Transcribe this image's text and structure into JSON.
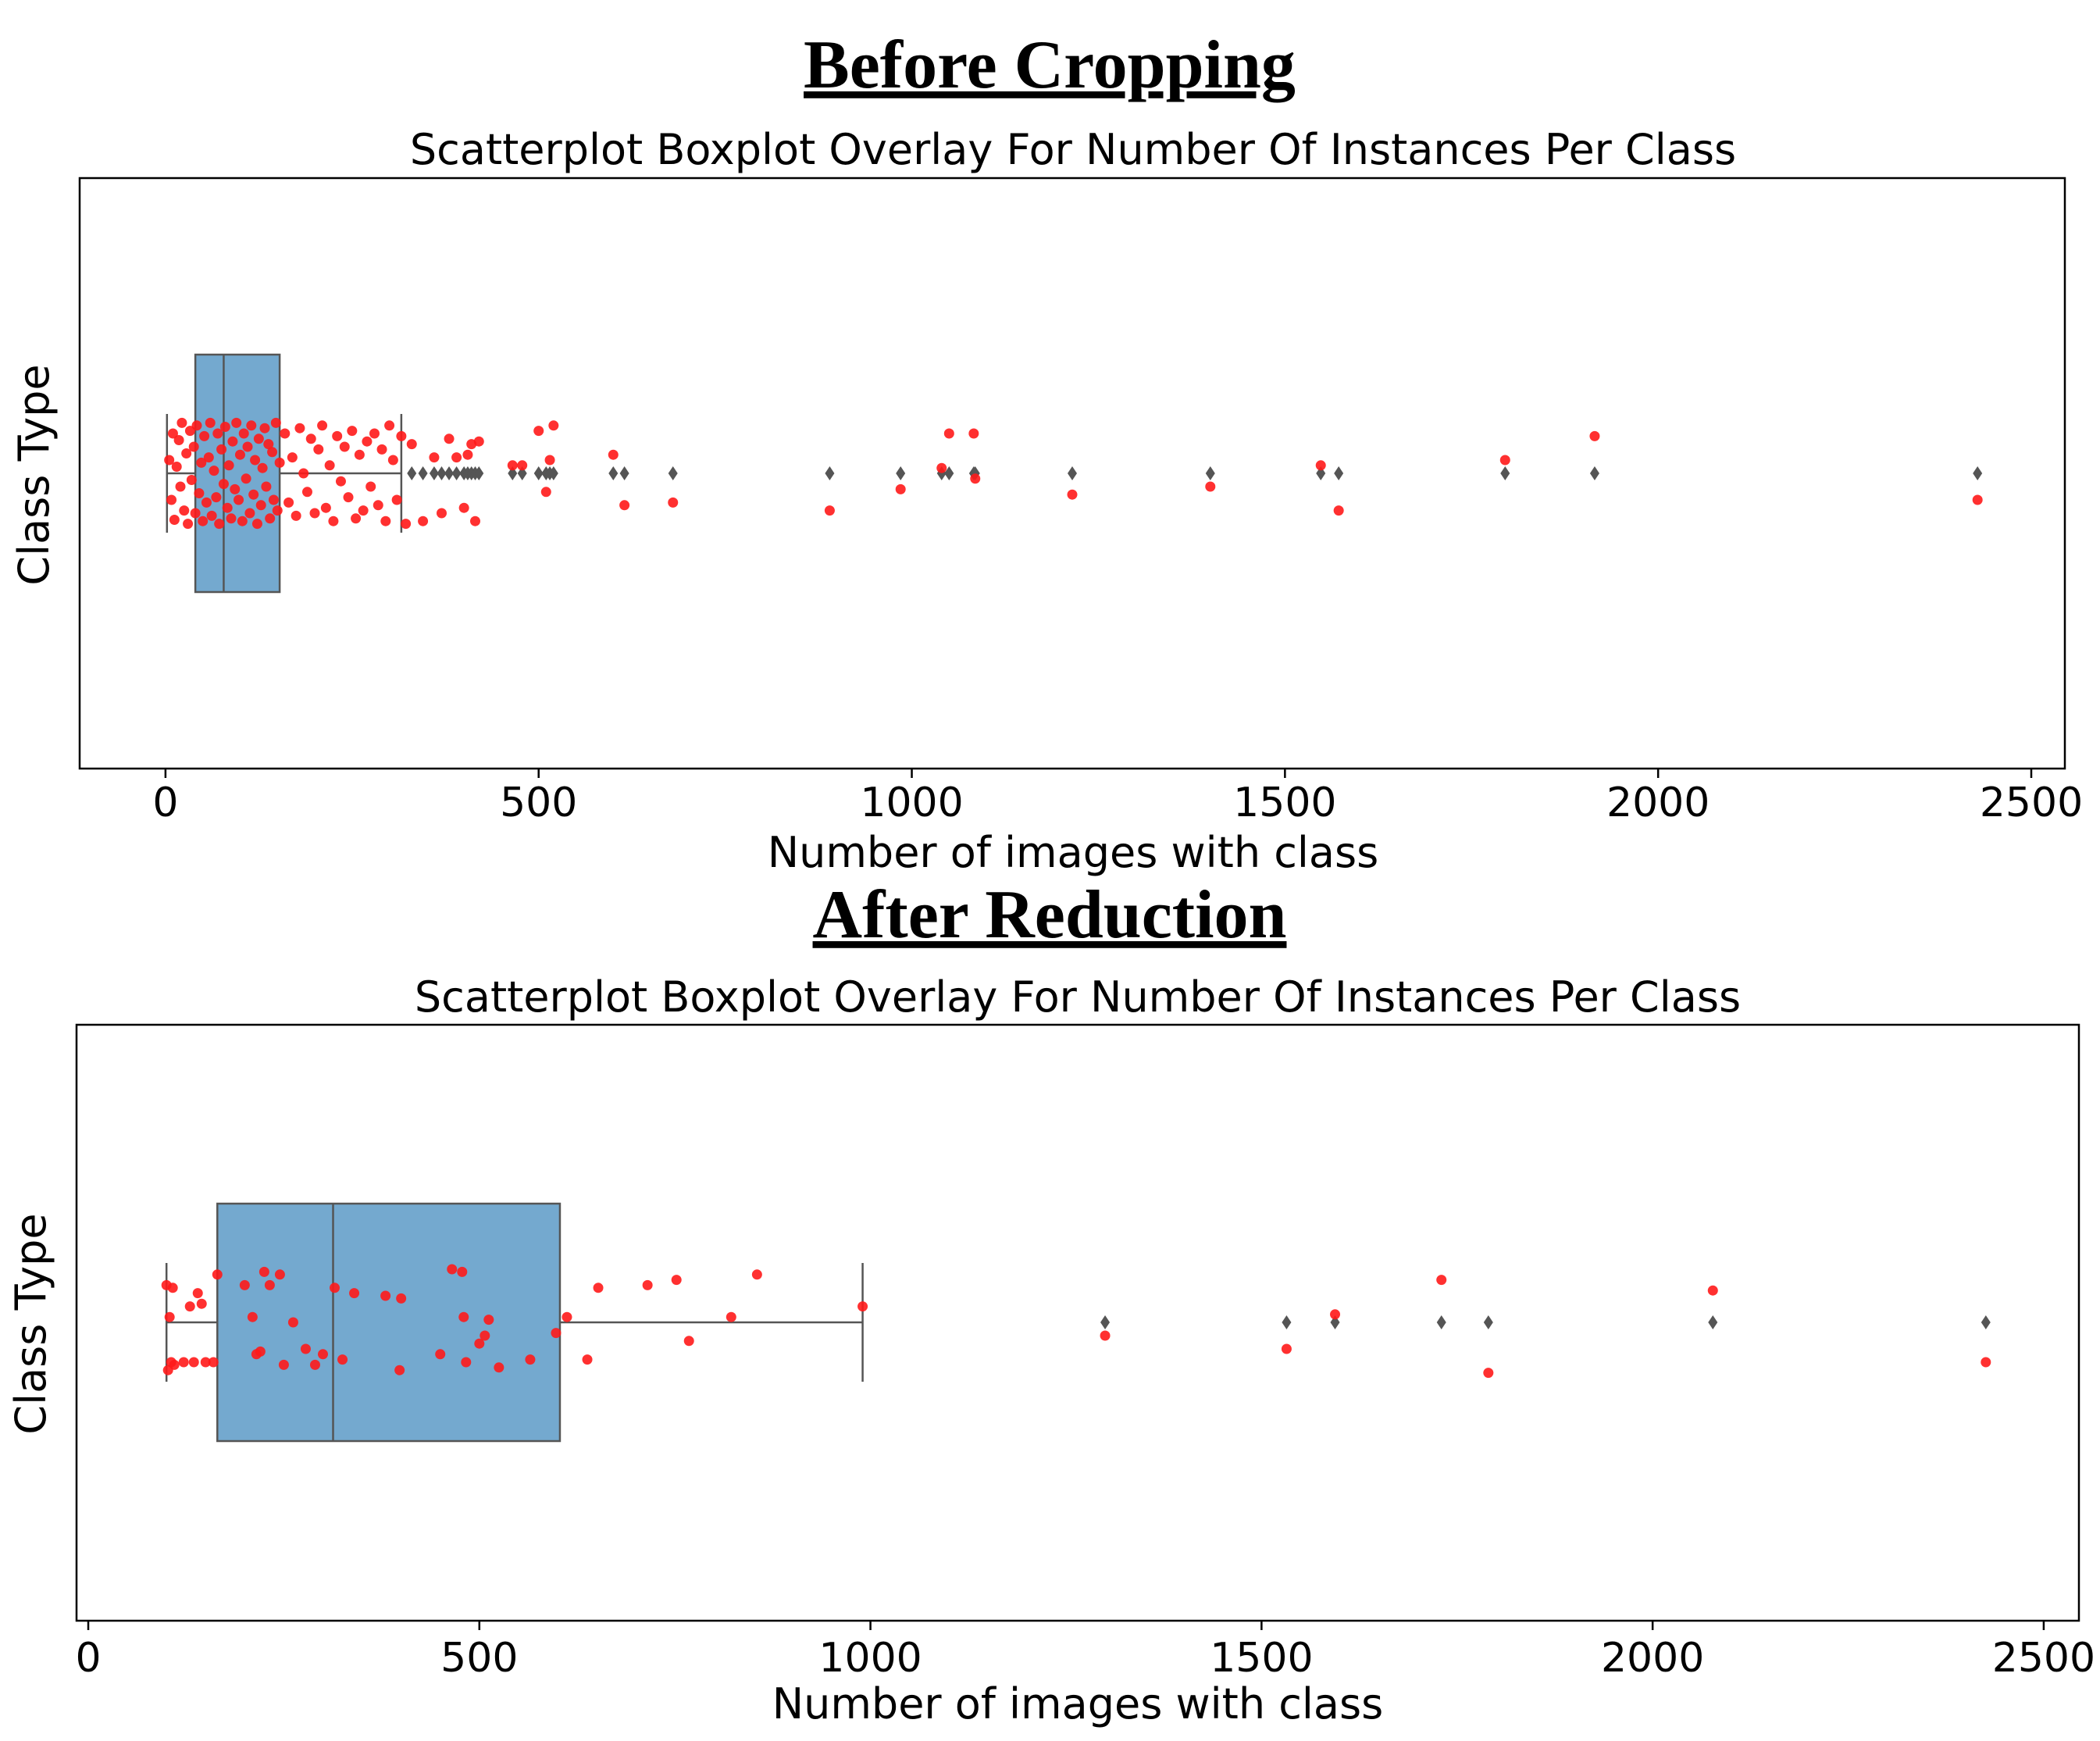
{
  "colors": {
    "box_fill": "#74a9cf",
    "box_edge": "#555555",
    "scatter": "#ff1a1a",
    "outlier": "#555555",
    "frame": "#000000"
  },
  "chart_data": [
    {
      "type": "scatter_box_overlay",
      "heading": "Before Cropping",
      "title": "Scatterplot Boxplot Overlay For Number Of Instances Per Class",
      "xlabel": "Number of images with class",
      "ylabel": "Class Type",
      "xlim": [
        -115,
        2545
      ],
      "xticks": [
        0,
        500,
        1000,
        1500,
        2000,
        2500
      ],
      "xtick_labels": [
        "0",
        "500",
        "1000",
        "1500",
        "2000",
        "2500"
      ],
      "box": {
        "whisker_low": 2,
        "q1": 40,
        "median": 78,
        "q3": 153,
        "whisker_high": 316
      },
      "outliers": [
        330,
        345,
        360,
        370,
        380,
        390,
        400,
        405,
        410,
        415,
        420,
        465,
        478,
        500,
        510,
        515,
        520,
        600,
        615,
        680,
        890,
        985,
        1040,
        1050,
        1083,
        1085,
        1215,
        1400,
        1548,
        1572,
        1795,
        1915,
        2428
      ],
      "points": [
        {
          "x": 5,
          "y": 0.1
        },
        {
          "x": 8,
          "y": -0.2
        },
        {
          "x": 10,
          "y": 0.3
        },
        {
          "x": 12,
          "y": -0.35
        },
        {
          "x": 15,
          "y": 0.05
        },
        {
          "x": 18,
          "y": 0.25
        },
        {
          "x": 20,
          "y": -0.1
        },
        {
          "x": 22,
          "y": 0.38
        },
        {
          "x": 25,
          "y": -0.28
        },
        {
          "x": 28,
          "y": 0.15
        },
        {
          "x": 30,
          "y": -0.38
        },
        {
          "x": 33,
          "y": 0.32
        },
        {
          "x": 35,
          "y": -0.05
        },
        {
          "x": 38,
          "y": 0.2
        },
        {
          "x": 40,
          "y": -0.3
        },
        {
          "x": 42,
          "y": 0.36
        },
        {
          "x": 45,
          "y": -0.15
        },
        {
          "x": 48,
          "y": 0.08
        },
        {
          "x": 50,
          "y": -0.36
        },
        {
          "x": 52,
          "y": 0.28
        },
        {
          "x": 55,
          "y": -0.22
        },
        {
          "x": 58,
          "y": 0.12
        },
        {
          "x": 60,
          "y": 0.38
        },
        {
          "x": 62,
          "y": -0.32
        },
        {
          "x": 65,
          "y": 0.02
        },
        {
          "x": 68,
          "y": -0.18
        },
        {
          "x": 70,
          "y": 0.3
        },
        {
          "x": 72,
          "y": -0.38
        },
        {
          "x": 75,
          "y": 0.18
        },
        {
          "x": 78,
          "y": -0.08
        },
        {
          "x": 80,
          "y": 0.35
        },
        {
          "x": 83,
          "y": -0.26
        },
        {
          "x": 85,
          "y": 0.06
        },
        {
          "x": 88,
          "y": -0.34
        },
        {
          "x": 90,
          "y": 0.24
        },
        {
          "x": 93,
          "y": -0.12
        },
        {
          "x": 95,
          "y": 0.38
        },
        {
          "x": 98,
          "y": -0.2
        },
        {
          "x": 100,
          "y": 0.14
        },
        {
          "x": 103,
          "y": -0.36
        },
        {
          "x": 105,
          "y": 0.3
        },
        {
          "x": 108,
          "y": -0.04
        },
        {
          "x": 110,
          "y": 0.2
        },
        {
          "x": 113,
          "y": -0.3
        },
        {
          "x": 115,
          "y": 0.36
        },
        {
          "x": 118,
          "y": -0.16
        },
        {
          "x": 120,
          "y": 0.1
        },
        {
          "x": 123,
          "y": -0.38
        },
        {
          "x": 125,
          "y": 0.26
        },
        {
          "x": 128,
          "y": -0.24
        },
        {
          "x": 130,
          "y": 0.04
        },
        {
          "x": 133,
          "y": 0.34
        },
        {
          "x": 135,
          "y": -0.1
        },
        {
          "x": 138,
          "y": 0.22
        },
        {
          "x": 140,
          "y": -0.34
        },
        {
          "x": 143,
          "y": 0.16
        },
        {
          "x": 145,
          "y": -0.2
        },
        {
          "x": 148,
          "y": 0.38
        },
        {
          "x": 150,
          "y": -0.28
        },
        {
          "x": 153,
          "y": 0.08
        },
        {
          "x": 160,
          "y": 0.3
        },
        {
          "x": 165,
          "y": -0.22
        },
        {
          "x": 170,
          "y": 0.12
        },
        {
          "x": 175,
          "y": -0.32
        },
        {
          "x": 180,
          "y": 0.34
        },
        {
          "x": 185,
          "y": 0.0
        },
        {
          "x": 190,
          "y": -0.14
        },
        {
          "x": 195,
          "y": 0.26
        },
        {
          "x": 200,
          "y": -0.3
        },
        {
          "x": 205,
          "y": 0.18
        },
        {
          "x": 210,
          "y": 0.36
        },
        {
          "x": 215,
          "y": -0.26
        },
        {
          "x": 220,
          "y": 0.06
        },
        {
          "x": 225,
          "y": -0.36
        },
        {
          "x": 230,
          "y": 0.28
        },
        {
          "x": 235,
          "y": -0.06
        },
        {
          "x": 240,
          "y": 0.2
        },
        {
          "x": 245,
          "y": -0.18
        },
        {
          "x": 250,
          "y": 0.32
        },
        {
          "x": 255,
          "y": -0.34
        },
        {
          "x": 260,
          "y": 0.14
        },
        {
          "x": 265,
          "y": -0.28
        },
        {
          "x": 270,
          "y": 0.24
        },
        {
          "x": 275,
          "y": -0.1
        },
        {
          "x": 280,
          "y": 0.3
        },
        {
          "x": 285,
          "y": -0.24
        },
        {
          "x": 290,
          "y": 0.18
        },
        {
          "x": 295,
          "y": -0.36
        },
        {
          "x": 300,
          "y": 0.36
        },
        {
          "x": 305,
          "y": 0.1
        },
        {
          "x": 310,
          "y": -0.2
        },
        {
          "x": 316,
          "y": 0.28
        },
        {
          "x": 322,
          "y": -0.38
        },
        {
          "x": 330,
          "y": 0.22
        },
        {
          "x": 345,
          "y": -0.36
        },
        {
          "x": 360,
          "y": 0.12
        },
        {
          "x": 370,
          "y": -0.3
        },
        {
          "x": 380,
          "y": 0.26
        },
        {
          "x": 390,
          "y": 0.12
        },
        {
          "x": 400,
          "y": -0.26
        },
        {
          "x": 405,
          "y": 0.14
        },
        {
          "x": 410,
          "y": 0.22
        },
        {
          "x": 415,
          "y": -0.36
        },
        {
          "x": 420,
          "y": 0.24
        },
        {
          "x": 465,
          "y": 0.06
        },
        {
          "x": 478,
          "y": 0.06
        },
        {
          "x": 500,
          "y": 0.32
        },
        {
          "x": 510,
          "y": -0.14
        },
        {
          "x": 515,
          "y": 0.1
        },
        {
          "x": 520,
          "y": 0.36
        },
        {
          "x": 600,
          "y": 0.14
        },
        {
          "x": 615,
          "y": -0.24
        },
        {
          "x": 680,
          "y": -0.22
        },
        {
          "x": 890,
          "y": -0.28
        },
        {
          "x": 985,
          "y": -0.12
        },
        {
          "x": 1040,
          "y": 0.04
        },
        {
          "x": 1050,
          "y": 0.3
        },
        {
          "x": 1083,
          "y": 0.3
        },
        {
          "x": 1085,
          "y": -0.04
        },
        {
          "x": 1215,
          "y": -0.16
        },
        {
          "x": 1400,
          "y": -0.1
        },
        {
          "x": 1548,
          "y": 0.06
        },
        {
          "x": 1572,
          "y": -0.28
        },
        {
          "x": 1795,
          "y": 0.1
        },
        {
          "x": 1915,
          "y": 0.28
        },
        {
          "x": 2428,
          "y": -0.2
        }
      ]
    },
    {
      "type": "scatter_box_overlay",
      "heading": "After Reduction",
      "title": "Scatterplot Boxplot Overlay For Number Of Instances Per Class",
      "xlabel": "Number of images with class",
      "ylabel": "Class Type",
      "xlim": [
        -15,
        2545
      ],
      "xticks": [
        0,
        500,
        1000,
        1500,
        2000,
        2500
      ],
      "xtick_labels": [
        "0",
        "500",
        "1000",
        "1500",
        "2000",
        "2500"
      ],
      "box": {
        "whisker_low": 100,
        "q1": 165,
        "median": 313,
        "q3": 603,
        "whisker_high": 990
      },
      "outliers": [
        1300,
        1532,
        1594,
        1730,
        1790,
        2077,
        2426
      ],
      "points": [
        {
          "x": 100,
          "y": 0.28
        },
        {
          "x": 102,
          "y": -0.36
        },
        {
          "x": 104,
          "y": 0.04
        },
        {
          "x": 106,
          "y": -0.3
        },
        {
          "x": 108,
          "y": 0.26
        },
        {
          "x": 110,
          "y": -0.32
        },
        {
          "x": 122,
          "y": -0.3
        },
        {
          "x": 130,
          "y": 0.12
        },
        {
          "x": 135,
          "y": -0.3
        },
        {
          "x": 140,
          "y": 0.22
        },
        {
          "x": 145,
          "y": 0.14
        },
        {
          "x": 150,
          "y": -0.3
        },
        {
          "x": 160,
          "y": -0.3
        },
        {
          "x": 165,
          "y": 0.36
        },
        {
          "x": 200,
          "y": 0.28
        },
        {
          "x": 210,
          "y": 0.04
        },
        {
          "x": 215,
          "y": -0.24
        },
        {
          "x": 220,
          "y": -0.22
        },
        {
          "x": 225,
          "y": 0.38
        },
        {
          "x": 232,
          "y": 0.28
        },
        {
          "x": 245,
          "y": 0.36
        },
        {
          "x": 250,
          "y": -0.32
        },
        {
          "x": 262,
          "y": 0.0
        },
        {
          "x": 278,
          "y": -0.2
        },
        {
          "x": 290,
          "y": -0.32
        },
        {
          "x": 300,
          "y": -0.24
        },
        {
          "x": 315,
          "y": 0.26
        },
        {
          "x": 325,
          "y": -0.28
        },
        {
          "x": 340,
          "y": 0.22
        },
        {
          "x": 380,
          "y": 0.2
        },
        {
          "x": 398,
          "y": -0.36
        },
        {
          "x": 400,
          "y": 0.18
        },
        {
          "x": 450,
          "y": -0.24
        },
        {
          "x": 465,
          "y": 0.4
        },
        {
          "x": 478,
          "y": 0.38
        },
        {
          "x": 480,
          "y": 0.04
        },
        {
          "x": 483,
          "y": -0.3
        },
        {
          "x": 500,
          "y": -0.16
        },
        {
          "x": 507,
          "y": -0.1
        },
        {
          "x": 512,
          "y": 0.02
        },
        {
          "x": 525,
          "y": -0.34
        },
        {
          "x": 565,
          "y": -0.28
        },
        {
          "x": 598,
          "y": -0.08
        },
        {
          "x": 612,
          "y": 0.04
        },
        {
          "x": 638,
          "y": -0.28
        },
        {
          "x": 652,
          "y": 0.26
        },
        {
          "x": 715,
          "y": 0.28
        },
        {
          "x": 752,
          "y": 0.32
        },
        {
          "x": 768,
          "y": -0.14
        },
        {
          "x": 822,
          "y": 0.04
        },
        {
          "x": 855,
          "y": 0.36
        },
        {
          "x": 990,
          "y": 0.12
        },
        {
          "x": 1300,
          "y": -0.1
        },
        {
          "x": 1532,
          "y": -0.2
        },
        {
          "x": 1594,
          "y": 0.06
        },
        {
          "x": 1730,
          "y": 0.32
        },
        {
          "x": 1790,
          "y": -0.38
        },
        {
          "x": 2077,
          "y": 0.24
        },
        {
          "x": 2426,
          "y": -0.3
        }
      ]
    }
  ]
}
